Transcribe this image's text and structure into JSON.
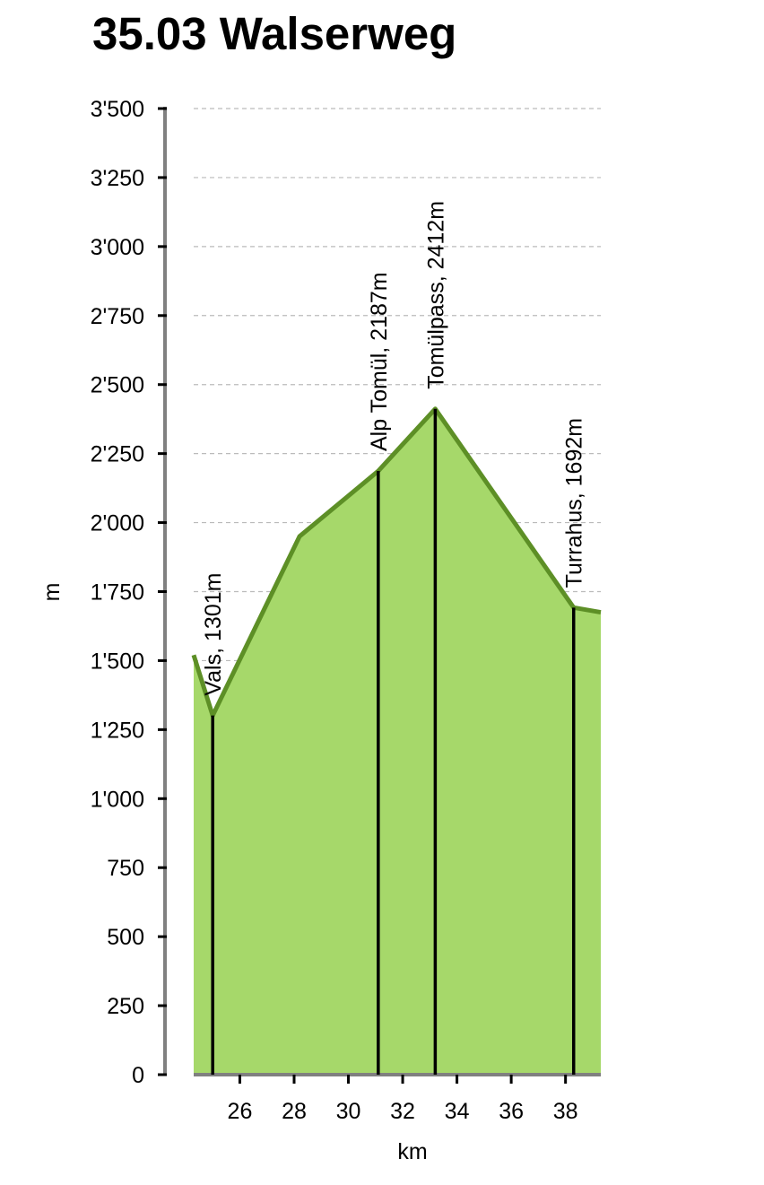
{
  "chart_data": {
    "type": "area",
    "title": "35.03 Walserweg",
    "xlabel": "km",
    "ylabel": "m",
    "xlim": [
      24.3,
      39.3
    ],
    "ylim": [
      0,
      3500
    ],
    "x_ticks": [
      26,
      28,
      30,
      32,
      34,
      36,
      38
    ],
    "x_tick_labels": [
      "26",
      "28",
      "30",
      "32",
      "34",
      "36",
      "38"
    ],
    "y_ticks": [
      0,
      250,
      500,
      750,
      1000,
      1250,
      1500,
      1750,
      2000,
      2250,
      2500,
      2750,
      3000,
      3250,
      3500
    ],
    "y_tick_labels": [
      "0",
      "250",
      "500",
      "750",
      "1'000",
      "1'250",
      "1'500",
      "1'750",
      "2'000",
      "2'250",
      "2'500",
      "2'750",
      "3'000",
      "3'250",
      "3'500"
    ],
    "grid": "horizontal dashed",
    "series": [
      {
        "x": [
          24.3,
          25.0,
          28.2,
          31.1,
          33.2,
          38.3,
          39.3
        ],
        "y": [
          1520,
          1301,
          1950,
          2187,
          2412,
          1692,
          1675
        ]
      }
    ],
    "annotations": [
      {
        "x": 25.0,
        "y": 1301,
        "label": "Vals, 1301m"
      },
      {
        "x": 31.1,
        "y": 2187,
        "label": "Alp Tomül, 2187m"
      },
      {
        "x": 33.2,
        "y": 2412,
        "label": "Tomülpass, 2412m"
      },
      {
        "x": 38.3,
        "y": 1692,
        "label": "Turrahus, 1692m"
      }
    ],
    "colors": {
      "fill": "#a6d86a",
      "line": "#5d8f26",
      "axis": "#808080",
      "grid": "#bbbbbb",
      "marker": "#000000"
    }
  }
}
